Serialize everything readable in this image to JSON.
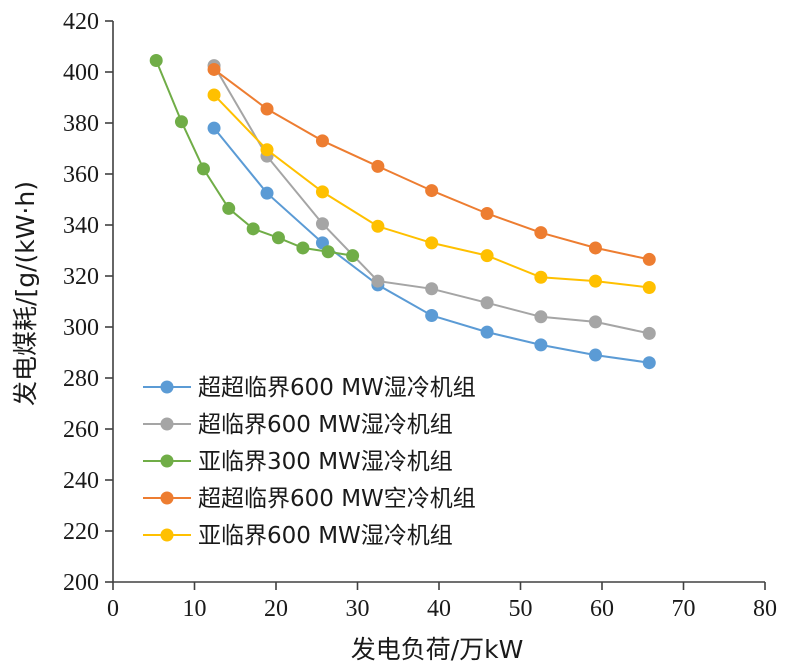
{
  "chart_data": {
    "type": "line",
    "title": "",
    "xlabel": "发电负荷/万kW",
    "ylabel": "发电煤耗/[g/(kW·h)",
    "xlim": [
      0,
      80
    ],
    "ylim": [
      200,
      420
    ],
    "xticks": [
      0,
      10,
      20,
      30,
      40,
      50,
      60,
      70,
      80
    ],
    "yticks": [
      200,
      220,
      240,
      260,
      280,
      300,
      320,
      340,
      360,
      380,
      400,
      420
    ],
    "grid": false,
    "legend_position": "lower-left",
    "series": [
      {
        "name": "超超临界600 MW湿冷机组",
        "color": "#5B9BD5",
        "x": [
          12.4,
          18.9,
          25.7,
          32.5,
          39.1,
          45.9,
          52.5,
          59.2,
          65.8
        ],
        "y": [
          378,
          352.5,
          333,
          316.5,
          304.5,
          298,
          293,
          289,
          286
        ]
      },
      {
        "name": "超临界600 MW湿冷机组",
        "color": "#A5A5A5",
        "x": [
          12.4,
          18.9,
          25.7,
          32.5,
          39.1,
          45.9,
          52.5,
          59.2,
          65.8
        ],
        "y": [
          402.5,
          367,
          340.5,
          318,
          315,
          309.5,
          304,
          302,
          297.5
        ]
      },
      {
        "name": "亚临界300 MW湿冷机组",
        "color": "#70AD47",
        "x": [
          5.3,
          8.4,
          11.1,
          14.2,
          17.2,
          20.3,
          23.3,
          26.4,
          29.4
        ],
        "y": [
          404.5,
          380.5,
          362,
          346.5,
          338.5,
          335,
          331,
          329.5,
          328
        ]
      },
      {
        "name": "超超临界600 MW空冷机组",
        "color": "#ED7D31",
        "x": [
          12.4,
          18.9,
          25.7,
          32.5,
          39.1,
          45.9,
          52.5,
          59.2,
          65.8
        ],
        "y": [
          401,
          385.5,
          373,
          363,
          353.5,
          344.5,
          337,
          331,
          326.5
        ]
      },
      {
        "name": "亚临界600 MW湿冷机组",
        "color": "#FFC000",
        "x": [
          12.4,
          18.9,
          25.7,
          32.5,
          39.1,
          45.9,
          52.5,
          59.2,
          65.8
        ],
        "y": [
          391,
          369.5,
          353,
          339.5,
          333,
          328,
          319.5,
          318,
          315.5
        ]
      }
    ]
  }
}
